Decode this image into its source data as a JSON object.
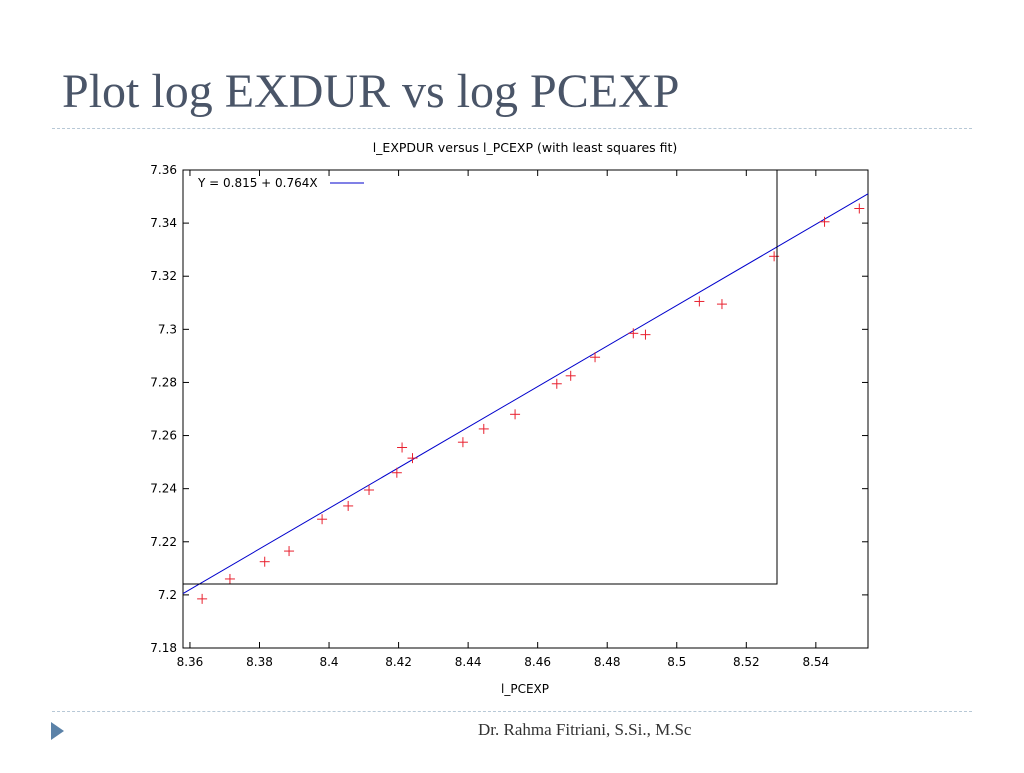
{
  "slide": {
    "title": "Plot log EXDUR vs log PCEXP",
    "footer": "Dr. Rahma Fitriani, S.Si., M.Sc"
  },
  "chart_data": {
    "type": "scatter",
    "title": "l_EXPDUR versus l_PCEXP (with least squares fit)",
    "xlabel": "l_PCEXP",
    "ylabel": "",
    "xlim": [
      8.358,
      8.555
    ],
    "ylim": [
      7.18,
      7.36
    ],
    "xticks": [
      8.36,
      8.38,
      8.4,
      8.42,
      8.44,
      8.46,
      8.48,
      8.5,
      8.52,
      8.54
    ],
    "xtick_labels": [
      "8.36",
      "8.38",
      "8.4",
      "8.42",
      "8.44",
      "8.46",
      "8.48",
      "8.5",
      "8.52",
      "8.54"
    ],
    "yticks": [
      7.18,
      7.2,
      7.22,
      7.24,
      7.26,
      7.28,
      7.3,
      7.32,
      7.34,
      7.36
    ],
    "ytick_labels": [
      "7.18",
      "7.2",
      "7.22",
      "7.24",
      "7.26",
      "7.28",
      "7.3",
      "7.32",
      "7.34",
      "7.36"
    ],
    "grid": false,
    "legend": {
      "position": "top-left",
      "label": "Y = 0.815 + 0.764X"
    },
    "fit": {
      "intercept": 0.815,
      "slope": 0.764,
      "color": "#0000cc"
    },
    "marker_color": "#e8202e",
    "points": [
      [
        8.3635,
        7.1985
      ],
      [
        8.3715,
        7.206
      ],
      [
        8.3815,
        7.2125
      ],
      [
        8.3885,
        7.2165
      ],
      [
        8.398,
        7.2285
      ],
      [
        8.4055,
        7.2335
      ],
      [
        8.4115,
        7.2395
      ],
      [
        8.4195,
        7.246
      ],
      [
        8.421,
        7.2555
      ],
      [
        8.424,
        7.2515
      ],
      [
        8.4385,
        7.2575
      ],
      [
        8.4445,
        7.2625
      ],
      [
        8.4535,
        7.268
      ],
      [
        8.4655,
        7.2795
      ],
      [
        8.4695,
        7.2825
      ],
      [
        8.4765,
        7.2895
      ],
      [
        8.4875,
        7.2985
      ],
      [
        8.491,
        7.298
      ],
      [
        8.5065,
        7.3105
      ],
      [
        8.513,
        7.3095
      ],
      [
        8.528,
        7.3275
      ],
      [
        8.5425,
        7.3405
      ],
      [
        8.5525,
        7.3455
      ]
    ]
  }
}
